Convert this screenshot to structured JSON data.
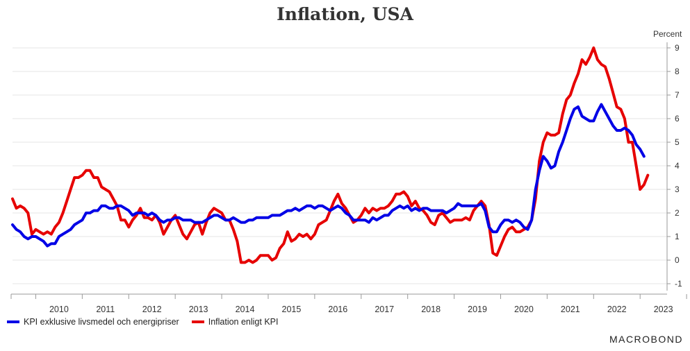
{
  "chart_data": {
    "type": "line",
    "title": "Inflation, USA",
    "ylabel": "Percent",
    "ylim": [
      -1,
      9
    ],
    "yticks": [
      "-1",
      "0",
      "1",
      "2",
      "3",
      "4",
      "5",
      "6",
      "7",
      "8",
      "9"
    ],
    "xlim": [
      2009.5,
      2023.58
    ],
    "xticks": [
      "2010",
      "2011",
      "2012",
      "2013",
      "2014",
      "2015",
      "2016",
      "2017",
      "2018",
      "2019",
      "2020",
      "2021",
      "2022",
      "2023"
    ],
    "grid": true,
    "legend_position": "bottom-left",
    "colors": {
      "core": "#0000e6",
      "headline": "#e60000",
      "grid": "#e6e6e6",
      "axis": "#999999"
    },
    "series": [
      {
        "name": "KPI exklusive livsmedel och energipriser",
        "color": "#0000e6",
        "start": 2009.5,
        "step": 0.0833333,
        "values": [
          1.5,
          1.3,
          1.2,
          1.0,
          0.9,
          1.0,
          1.0,
          0.9,
          0.8,
          0.6,
          0.7,
          0.7,
          1.0,
          1.1,
          1.2,
          1.3,
          1.5,
          1.6,
          1.7,
          2.0,
          2.0,
          2.1,
          2.1,
          2.3,
          2.3,
          2.2,
          2.2,
          2.3,
          2.3,
          2.2,
          2.1,
          1.9,
          2.0,
          2.0,
          2.0,
          1.9,
          2.0,
          1.9,
          1.7,
          1.6,
          1.7,
          1.7,
          1.8,
          1.8,
          1.7,
          1.7,
          1.7,
          1.6,
          1.6,
          1.6,
          1.7,
          1.8,
          1.9,
          1.9,
          1.8,
          1.7,
          1.7,
          1.8,
          1.7,
          1.6,
          1.6,
          1.7,
          1.7,
          1.8,
          1.8,
          1.8,
          1.8,
          1.9,
          1.9,
          1.9,
          2.0,
          2.1,
          2.1,
          2.2,
          2.1,
          2.2,
          2.3,
          2.3,
          2.2,
          2.3,
          2.3,
          2.2,
          2.1,
          2.2,
          2.3,
          2.2,
          2.0,
          1.9,
          1.7,
          1.7,
          1.7,
          1.7,
          1.6,
          1.8,
          1.7,
          1.8,
          1.9,
          1.9,
          2.1,
          2.2,
          2.3,
          2.2,
          2.3,
          2.1,
          2.2,
          2.1,
          2.2,
          2.2,
          2.1,
          2.1,
          2.1,
          2.1,
          2.0,
          2.1,
          2.2,
          2.4,
          2.3,
          2.3,
          2.3,
          2.3,
          2.3,
          2.4,
          2.1,
          1.4,
          1.2,
          1.2,
          1.5,
          1.7,
          1.7,
          1.6,
          1.7,
          1.6,
          1.4,
          1.3,
          1.7,
          3.0,
          3.8,
          4.4,
          4.2,
          3.9,
          4.0,
          4.6,
          5.0,
          5.5,
          6.0,
          6.4,
          6.5,
          6.1,
          6.0,
          5.9,
          5.9,
          6.3,
          6.6,
          6.3,
          6.0,
          5.7,
          5.5,
          5.5,
          5.6,
          5.5,
          5.3,
          4.9,
          4.7,
          4.4
        ]
      },
      {
        "name": "Inflation enligt KPI",
        "color": "#e60000",
        "start": 2009.5,
        "step": 0.0833333,
        "values": [
          2.6,
          2.2,
          2.3,
          2.2,
          2.0,
          1.1,
          1.3,
          1.2,
          1.1,
          1.2,
          1.1,
          1.4,
          1.6,
          2.0,
          2.5,
          3.0,
          3.5,
          3.5,
          3.6,
          3.8,
          3.8,
          3.5,
          3.5,
          3.1,
          3.0,
          2.9,
          2.6,
          2.3,
          1.7,
          1.7,
          1.4,
          1.7,
          1.9,
          2.2,
          1.8,
          1.8,
          1.7,
          1.9,
          1.6,
          1.1,
          1.4,
          1.7,
          1.9,
          1.5,
          1.1,
          0.9,
          1.2,
          1.5,
          1.6,
          1.1,
          1.6,
          2.0,
          2.2,
          2.1,
          2.0,
          1.7,
          1.7,
          1.3,
          0.8,
          -0.1,
          -0.1,
          0.0,
          -0.1,
          0.0,
          0.2,
          0.2,
          0.2,
          0.0,
          0.1,
          0.5,
          0.7,
          1.2,
          0.8,
          0.9,
          1.1,
          1.0,
          1.1,
          0.9,
          1.1,
          1.5,
          1.6,
          1.7,
          2.1,
          2.5,
          2.8,
          2.4,
          2.2,
          1.9,
          1.6,
          1.7,
          1.9,
          2.2,
          2.0,
          2.2,
          2.1,
          2.2,
          2.2,
          2.3,
          2.5,
          2.8,
          2.8,
          2.9,
          2.7,
          2.3,
          2.5,
          2.2,
          2.1,
          1.9,
          1.6,
          1.5,
          1.9,
          2.0,
          1.8,
          1.6,
          1.7,
          1.7,
          1.7,
          1.8,
          1.7,
          2.1,
          2.3,
          2.5,
          2.3,
          1.5,
          0.3,
          0.2,
          0.6,
          1.0,
          1.3,
          1.4,
          1.2,
          1.2,
          1.3,
          1.4,
          1.7,
          2.6,
          4.2,
          5.0,
          5.4,
          5.3,
          5.3,
          5.4,
          6.2,
          6.8,
          7.0,
          7.5,
          7.9,
          8.5,
          8.3,
          8.6,
          9.0,
          8.5,
          8.3,
          8.2,
          7.7,
          7.1,
          6.5,
          6.4,
          6.0,
          5.0,
          5.0,
          4.0,
          3.0,
          3.2,
          3.6
        ]
      }
    ]
  },
  "brand": {
    "name": "MACROBOND"
  }
}
